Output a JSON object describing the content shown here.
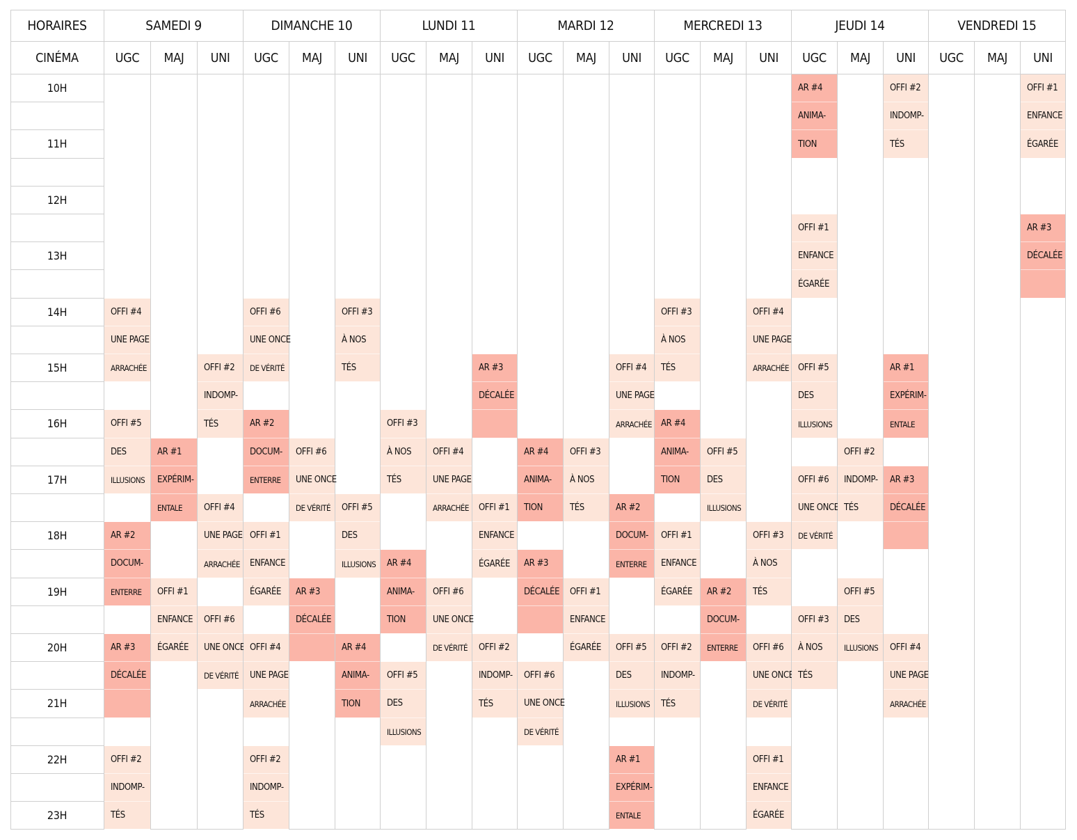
{
  "header": {
    "corner_label": "HORAIRES",
    "cinema_label": "CINÉMA",
    "days": [
      "SAMEDI 9",
      "DIMANCHE 10",
      "LUNDI 11",
      "MARDI 12",
      "MERCREDI 13",
      "JEUDI 14",
      "VENDREDI 15"
    ],
    "cinemas": [
      "UGC",
      "MAJ",
      "UNI"
    ]
  },
  "times": [
    "10H",
    "",
    "11H",
    "",
    "12H",
    "",
    "13H",
    "",
    "14H",
    "",
    "15H",
    "",
    "16H",
    "",
    "17H",
    "",
    "18H",
    "",
    "19H",
    "",
    "20H",
    "",
    "21H",
    "",
    "22H",
    "",
    "23H"
  ],
  "colors": {
    "offi": "#fde5d9",
    "ar": "#fbb5a8",
    "grid": "#cfcfcf"
  },
  "events": [
    {
      "col": 0,
      "start": 8,
      "span": 3,
      "kind": "offi",
      "lines": [
        "OFFI #4",
        "UNE PAGE",
        "ARRACHÉE"
      ]
    },
    {
      "col": 0,
      "start": 12,
      "span": 3,
      "kind": "offi",
      "lines": [
        "OFFI #5",
        "DES",
        "ILLUSIONS"
      ]
    },
    {
      "col": 0,
      "start": 16,
      "span": 3,
      "kind": "ar",
      "lines": [
        "AR #2",
        "DOCUM-",
        "ENTERRE"
      ]
    },
    {
      "col": 0,
      "start": 20,
      "span": 3,
      "kind": "ar",
      "lines": [
        "AR #3",
        "DÉCALÉE",
        ""
      ]
    },
    {
      "col": 0,
      "start": 24,
      "span": 3,
      "kind": "offi",
      "lines": [
        "OFFI #2",
        "INDOMP-",
        "TÉS"
      ]
    },
    {
      "col": 1,
      "start": 13,
      "span": 3,
      "kind": "ar",
      "lines": [
        "AR #1",
        "EXPÉRIM-",
        "ENTALE"
      ]
    },
    {
      "col": 1,
      "start": 18,
      "span": 3,
      "kind": "offi",
      "lines": [
        "OFFI #1",
        "ENFANCE",
        "ÉGARÉE"
      ]
    },
    {
      "col": 2,
      "start": 10,
      "span": 3,
      "kind": "offi",
      "lines": [
        "OFFI #2",
        "INDOMP-",
        "TÉS"
      ]
    },
    {
      "col": 2,
      "start": 15,
      "span": 3,
      "kind": "offi",
      "lines": [
        "OFFI #4",
        "UNE PAGE",
        "ARRACHÉE"
      ]
    },
    {
      "col": 2,
      "start": 19,
      "span": 3,
      "kind": "offi",
      "lines": [
        "OFFI #6",
        "UNE ONCE",
        "DE VÉRITÉ"
      ]
    },
    {
      "col": 3,
      "start": 8,
      "span": 3,
      "kind": "offi",
      "lines": [
        "OFFI #6",
        "UNE ONCE",
        "DE VÉRITÉ"
      ]
    },
    {
      "col": 3,
      "start": 12,
      "span": 3,
      "kind": "ar",
      "lines": [
        "AR #2",
        "DOCUM-",
        "ENTERRE"
      ]
    },
    {
      "col": 3,
      "start": 16,
      "span": 3,
      "kind": "offi",
      "lines": [
        "OFFI #1",
        "ENFANCE",
        "ÉGARÉE"
      ]
    },
    {
      "col": 3,
      "start": 20,
      "span": 3,
      "kind": "offi",
      "lines": [
        "OFFI #4",
        "UNE PAGE",
        "ARRACHÉE"
      ]
    },
    {
      "col": 3,
      "start": 24,
      "span": 3,
      "kind": "offi",
      "lines": [
        "OFFI #2",
        "INDOMP-",
        "TÉS"
      ]
    },
    {
      "col": 4,
      "start": 13,
      "span": 3,
      "kind": "offi",
      "lines": [
        "OFFI #6",
        "UNE ONCE",
        "DE VÉRITÉ"
      ]
    },
    {
      "col": 4,
      "start": 18,
      "span": 3,
      "kind": "ar",
      "lines": [
        "AR #3",
        "DÉCALÉE",
        ""
      ]
    },
    {
      "col": 5,
      "start": 8,
      "span": 3,
      "kind": "offi",
      "lines": [
        "OFFI #3",
        "À NOS",
        "TÉS"
      ]
    },
    {
      "col": 5,
      "start": 15,
      "span": 3,
      "kind": "offi",
      "lines": [
        "OFFI #5",
        "DES",
        "ILLUSIONS"
      ]
    },
    {
      "col": 5,
      "start": 20,
      "span": 3,
      "kind": "ar",
      "lines": [
        "AR #4",
        "ANIMA-",
        "TION"
      ]
    },
    {
      "col": 6,
      "start": 12,
      "span": 3,
      "kind": "offi",
      "lines": [
        "OFFI #3",
        "À NOS",
        "TÉS"
      ]
    },
    {
      "col": 6,
      "start": 17,
      "span": 3,
      "kind": "ar",
      "lines": [
        "AR #4",
        "ANIMA-",
        "TION"
      ]
    },
    {
      "col": 6,
      "start": 21,
      "span": 3,
      "kind": "offi",
      "lines": [
        "OFFI #5",
        "DES",
        "ILLUSIONS"
      ]
    },
    {
      "col": 7,
      "start": 13,
      "span": 3,
      "kind": "offi",
      "lines": [
        "OFFI #4",
        "UNE PAGE",
        "ARRACHÉE"
      ]
    },
    {
      "col": 7,
      "start": 18,
      "span": 3,
      "kind": "offi",
      "lines": [
        "OFFI #6",
        "UNE ONCE",
        "DE VÉRITÉ"
      ]
    },
    {
      "col": 8,
      "start": 10,
      "span": 3,
      "kind": "ar",
      "lines": [
        "AR #3",
        "DÉCALÉE",
        ""
      ]
    },
    {
      "col": 8,
      "start": 15,
      "span": 3,
      "kind": "offi",
      "lines": [
        "OFFI #1",
        "ENFANCE",
        "ÉGARÉE"
      ]
    },
    {
      "col": 8,
      "start": 20,
      "span": 3,
      "kind": "offi",
      "lines": [
        "OFFI #2",
        "INDOMP-",
        "TÉS"
      ]
    },
    {
      "col": 9,
      "start": 13,
      "span": 3,
      "kind": "ar",
      "lines": [
        "AR #4",
        "ANIMA-",
        "TION"
      ]
    },
    {
      "col": 9,
      "start": 17,
      "span": 3,
      "kind": "ar",
      "lines": [
        "AR #3",
        "DÉCALÉE",
        ""
      ]
    },
    {
      "col": 9,
      "start": 21,
      "span": 3,
      "kind": "offi",
      "lines": [
        "OFFI #6",
        "UNE ONCE",
        "DE VÉRITÉ"
      ]
    },
    {
      "col": 10,
      "start": 13,
      "span": 3,
      "kind": "offi",
      "lines": [
        "OFFI #3",
        "À NOS",
        "TÉS"
      ]
    },
    {
      "col": 10,
      "start": 18,
      "span": 3,
      "kind": "offi",
      "lines": [
        "OFFI #1",
        "ENFANCE",
        "ÉGARÉE"
      ]
    },
    {
      "col": 11,
      "start": 10,
      "span": 3,
      "kind": "offi",
      "lines": [
        "OFFI #4",
        "UNE PAGE",
        "ARRACHÉE"
      ]
    },
    {
      "col": 11,
      "start": 15,
      "span": 3,
      "kind": "ar",
      "lines": [
        "AR #2",
        "DOCUM-",
        "ENTERRE"
      ]
    },
    {
      "col": 11,
      "start": 20,
      "span": 3,
      "kind": "offi",
      "lines": [
        "OFFI #5",
        "DES",
        "ILLUSIONS"
      ]
    },
    {
      "col": 11,
      "start": 24,
      "span": 3,
      "kind": "ar",
      "lines": [
        "AR #1",
        "EXPÉRIM-",
        "ENTALE"
      ]
    },
    {
      "col": 12,
      "start": 8,
      "span": 3,
      "kind": "offi",
      "lines": [
        "OFFI #3",
        "À NOS",
        "TÉS"
      ]
    },
    {
      "col": 12,
      "start": 12,
      "span": 3,
      "kind": "ar",
      "lines": [
        "AR #4",
        "ANIMA-",
        "TION"
      ]
    },
    {
      "col": 12,
      "start": 16,
      "span": 3,
      "kind": "offi",
      "lines": [
        "OFFI #1",
        "ENFANCE",
        "ÉGARÉE"
      ]
    },
    {
      "col": 12,
      "start": 20,
      "span": 3,
      "kind": "offi",
      "lines": [
        "OFFI #2",
        "INDOMP-",
        "TÉS"
      ]
    },
    {
      "col": 13,
      "start": 13,
      "span": 3,
      "kind": "offi",
      "lines": [
        "OFFI #5",
        "DES",
        "ILLUSIONS"
      ]
    },
    {
      "col": 13,
      "start": 18,
      "span": 3,
      "kind": "ar",
      "lines": [
        "AR #2",
        "DOCUM-",
        "ENTERRE"
      ]
    },
    {
      "col": 14,
      "start": 8,
      "span": 3,
      "kind": "offi",
      "lines": [
        "OFFI #4",
        "UNE PAGE",
        "ARRACHÉE"
      ]
    },
    {
      "col": 14,
      "start": 16,
      "span": 3,
      "kind": "offi",
      "lines": [
        "OFFI #3",
        "À NOS",
        "TÉS"
      ]
    },
    {
      "col": 14,
      "start": 20,
      "span": 3,
      "kind": "offi",
      "lines": [
        "OFFI #6",
        "UNE ONCE",
        "DE VÉRITÉ"
      ]
    },
    {
      "col": 14,
      "start": 24,
      "span": 3,
      "kind": "offi",
      "lines": [
        "OFFI #1",
        "ENFANCE",
        "ÉGARÉE"
      ]
    },
    {
      "col": 15,
      "start": 0,
      "span": 3,
      "kind": "ar",
      "lines": [
        "AR #4",
        "ANIMA-",
        "TION"
      ]
    },
    {
      "col": 15,
      "start": 5,
      "span": 3,
      "kind": "offi",
      "lines": [
        "OFFI #1",
        "ENFANCE",
        "ÉGARÉE"
      ]
    },
    {
      "col": 15,
      "start": 10,
      "span": 3,
      "kind": "offi",
      "lines": [
        "OFFI #5",
        "DES",
        "ILLUSIONS"
      ]
    },
    {
      "col": 15,
      "start": 14,
      "span": 3,
      "kind": "offi",
      "lines": [
        "OFFI #6",
        "UNE ONCE",
        "DE VÉRITÉ"
      ]
    },
    {
      "col": 15,
      "start": 19,
      "span": 3,
      "kind": "offi",
      "lines": [
        "OFFI #3",
        "À NOS",
        "TÉS"
      ]
    },
    {
      "col": 16,
      "start": 13,
      "span": 3,
      "kind": "offi",
      "lines": [
        "OFFI #2",
        "INDOMP-",
        "TÉS"
      ]
    },
    {
      "col": 16,
      "start": 18,
      "span": 3,
      "kind": "offi",
      "lines": [
        "OFFI #5",
        "DES",
        "ILLUSIONS"
      ]
    },
    {
      "col": 17,
      "start": 0,
      "span": 3,
      "kind": "offi",
      "lines": [
        "OFFI #2",
        "INDOMP-",
        "TÉS"
      ]
    },
    {
      "col": 17,
      "start": 10,
      "span": 3,
      "kind": "ar",
      "lines": [
        "AR #1",
        "EXPÉRIM-",
        "ENTALE"
      ]
    },
    {
      "col": 17,
      "start": 14,
      "span": 3,
      "kind": "ar",
      "lines": [
        "AR #3",
        "DÉCALÉE",
        ""
      ]
    },
    {
      "col": 17,
      "start": 20,
      "span": 3,
      "kind": "offi",
      "lines": [
        "OFFI #4",
        "UNE PAGE",
        "ARRACHÉE"
      ]
    },
    {
      "col": 20,
      "start": 0,
      "span": 3,
      "kind": "offi",
      "lines": [
        "OFFI #1",
        "ENFANCE",
        "ÉGARÉE"
      ]
    },
    {
      "col": 20,
      "start": 5,
      "span": 3,
      "kind": "ar",
      "lines": [
        "AR #3",
        "DÉCALÉE",
        ""
      ]
    }
  ]
}
